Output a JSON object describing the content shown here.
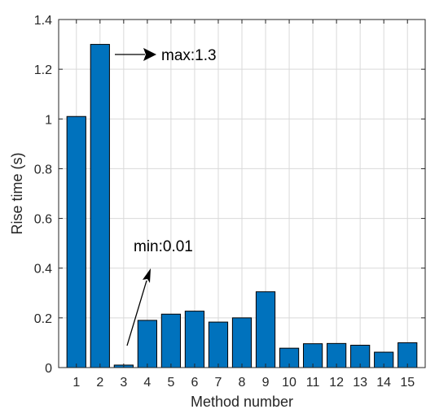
{
  "chart_data": {
    "type": "bar",
    "title": "",
    "xlabel": "Method number",
    "ylabel": "Rise time (s)",
    "categories": [
      "1",
      "2",
      "3",
      "4",
      "5",
      "6",
      "7",
      "8",
      "9",
      "10",
      "11",
      "12",
      "13",
      "14",
      "15"
    ],
    "values": [
      1.01,
      1.3,
      0.01,
      0.19,
      0.215,
      0.227,
      0.183,
      0.2,
      0.305,
      0.078,
      0.096,
      0.097,
      0.09,
      0.062,
      0.1
    ],
    "ylim": [
      0,
      1.4
    ],
    "yticks": [
      "0",
      "0.2",
      "0.4",
      "0.6",
      "0.8",
      "1",
      "1.2",
      "1.4"
    ],
    "grid": true,
    "bar_color": "#0072BD",
    "annotations": [
      {
        "text": "max:1.3",
        "target_category": "2",
        "target_value": 1.3
      },
      {
        "text": "min:0.01",
        "target_category": "3",
        "target_value": 0.01
      }
    ]
  }
}
